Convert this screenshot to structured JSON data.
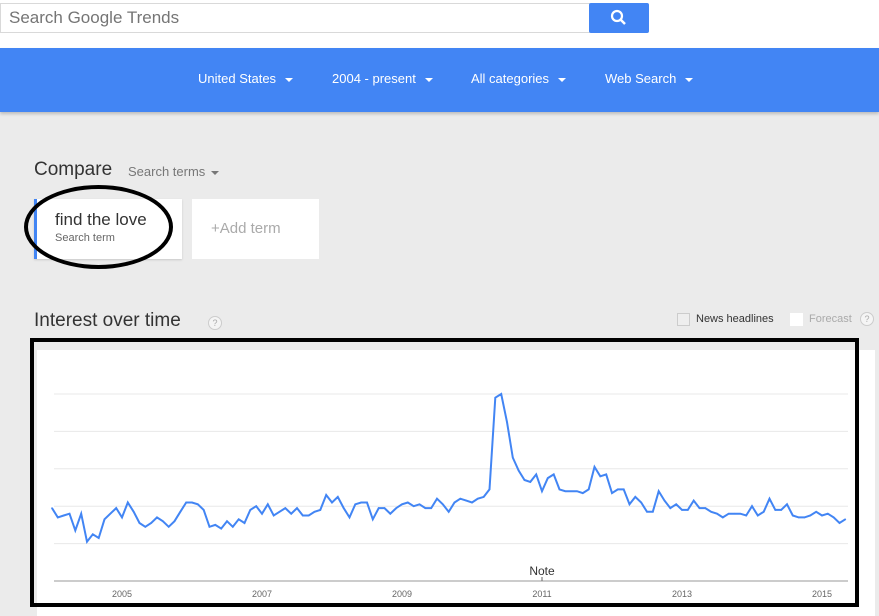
{
  "search": {
    "placeholder": "Search Google Trends",
    "button_icon": "search-icon"
  },
  "filters": [
    {
      "label": "United States"
    },
    {
      "label": "2004 - present"
    },
    {
      "label": "All categories"
    },
    {
      "label": "Web Search"
    }
  ],
  "compare": {
    "title": "Compare",
    "mode": "Search terms",
    "term": "find the love",
    "term_sub": "Search term",
    "add_label": "+Add term"
  },
  "interest": {
    "title": "Interest over time",
    "help": "?",
    "news_label": "News headlines",
    "forecast_label": "Forecast"
  },
  "colors": {
    "brand": "#4285f4",
    "line": "#4285f4"
  },
  "chart_data": {
    "type": "line",
    "x_start": "2004-01",
    "x_step": "month",
    "ylim": [
      0,
      100
    ],
    "grid": true,
    "xtick_labels": [
      "2005",
      "2007",
      "2009",
      "2011",
      "2013",
      "2015"
    ],
    "annotation": "Note",
    "series": [
      {
        "values": [
          39,
          34,
          35,
          36,
          27,
          36,
          21,
          25,
          23,
          33,
          36,
          39,
          34,
          42,
          37,
          31,
          29,
          31,
          34,
          32,
          29,
          32,
          37,
          42,
          42,
          41,
          38,
          29,
          30,
          28,
          32,
          29,
          33,
          31,
          38,
          40,
          36,
          41,
          35,
          37,
          39,
          36,
          39,
          35,
          35,
          37,
          38,
          46,
          42,
          45,
          39,
          34,
          41,
          42,
          42,
          33,
          39,
          39,
          36,
          39,
          41,
          42,
          40,
          41,
          39,
          39,
          44,
          41,
          37,
          42,
          44,
          43,
          42,
          44,
          45,
          49,
          98,
          100,
          85,
          66,
          59,
          54,
          53,
          57,
          48,
          55,
          57,
          49,
          48,
          48,
          48,
          47,
          49,
          61,
          56,
          57,
          47,
          49,
          49,
          41,
          45,
          42,
          37,
          37,
          48,
          43,
          39,
          41,
          38,
          38,
          43,
          39,
          39,
          37,
          36,
          34,
          36,
          36,
          36,
          35,
          40,
          35,
          37,
          44,
          38,
          38,
          41,
          35,
          34,
          34,
          35,
          37,
          35,
          36,
          34,
          31,
          33
        ]
      }
    ]
  }
}
